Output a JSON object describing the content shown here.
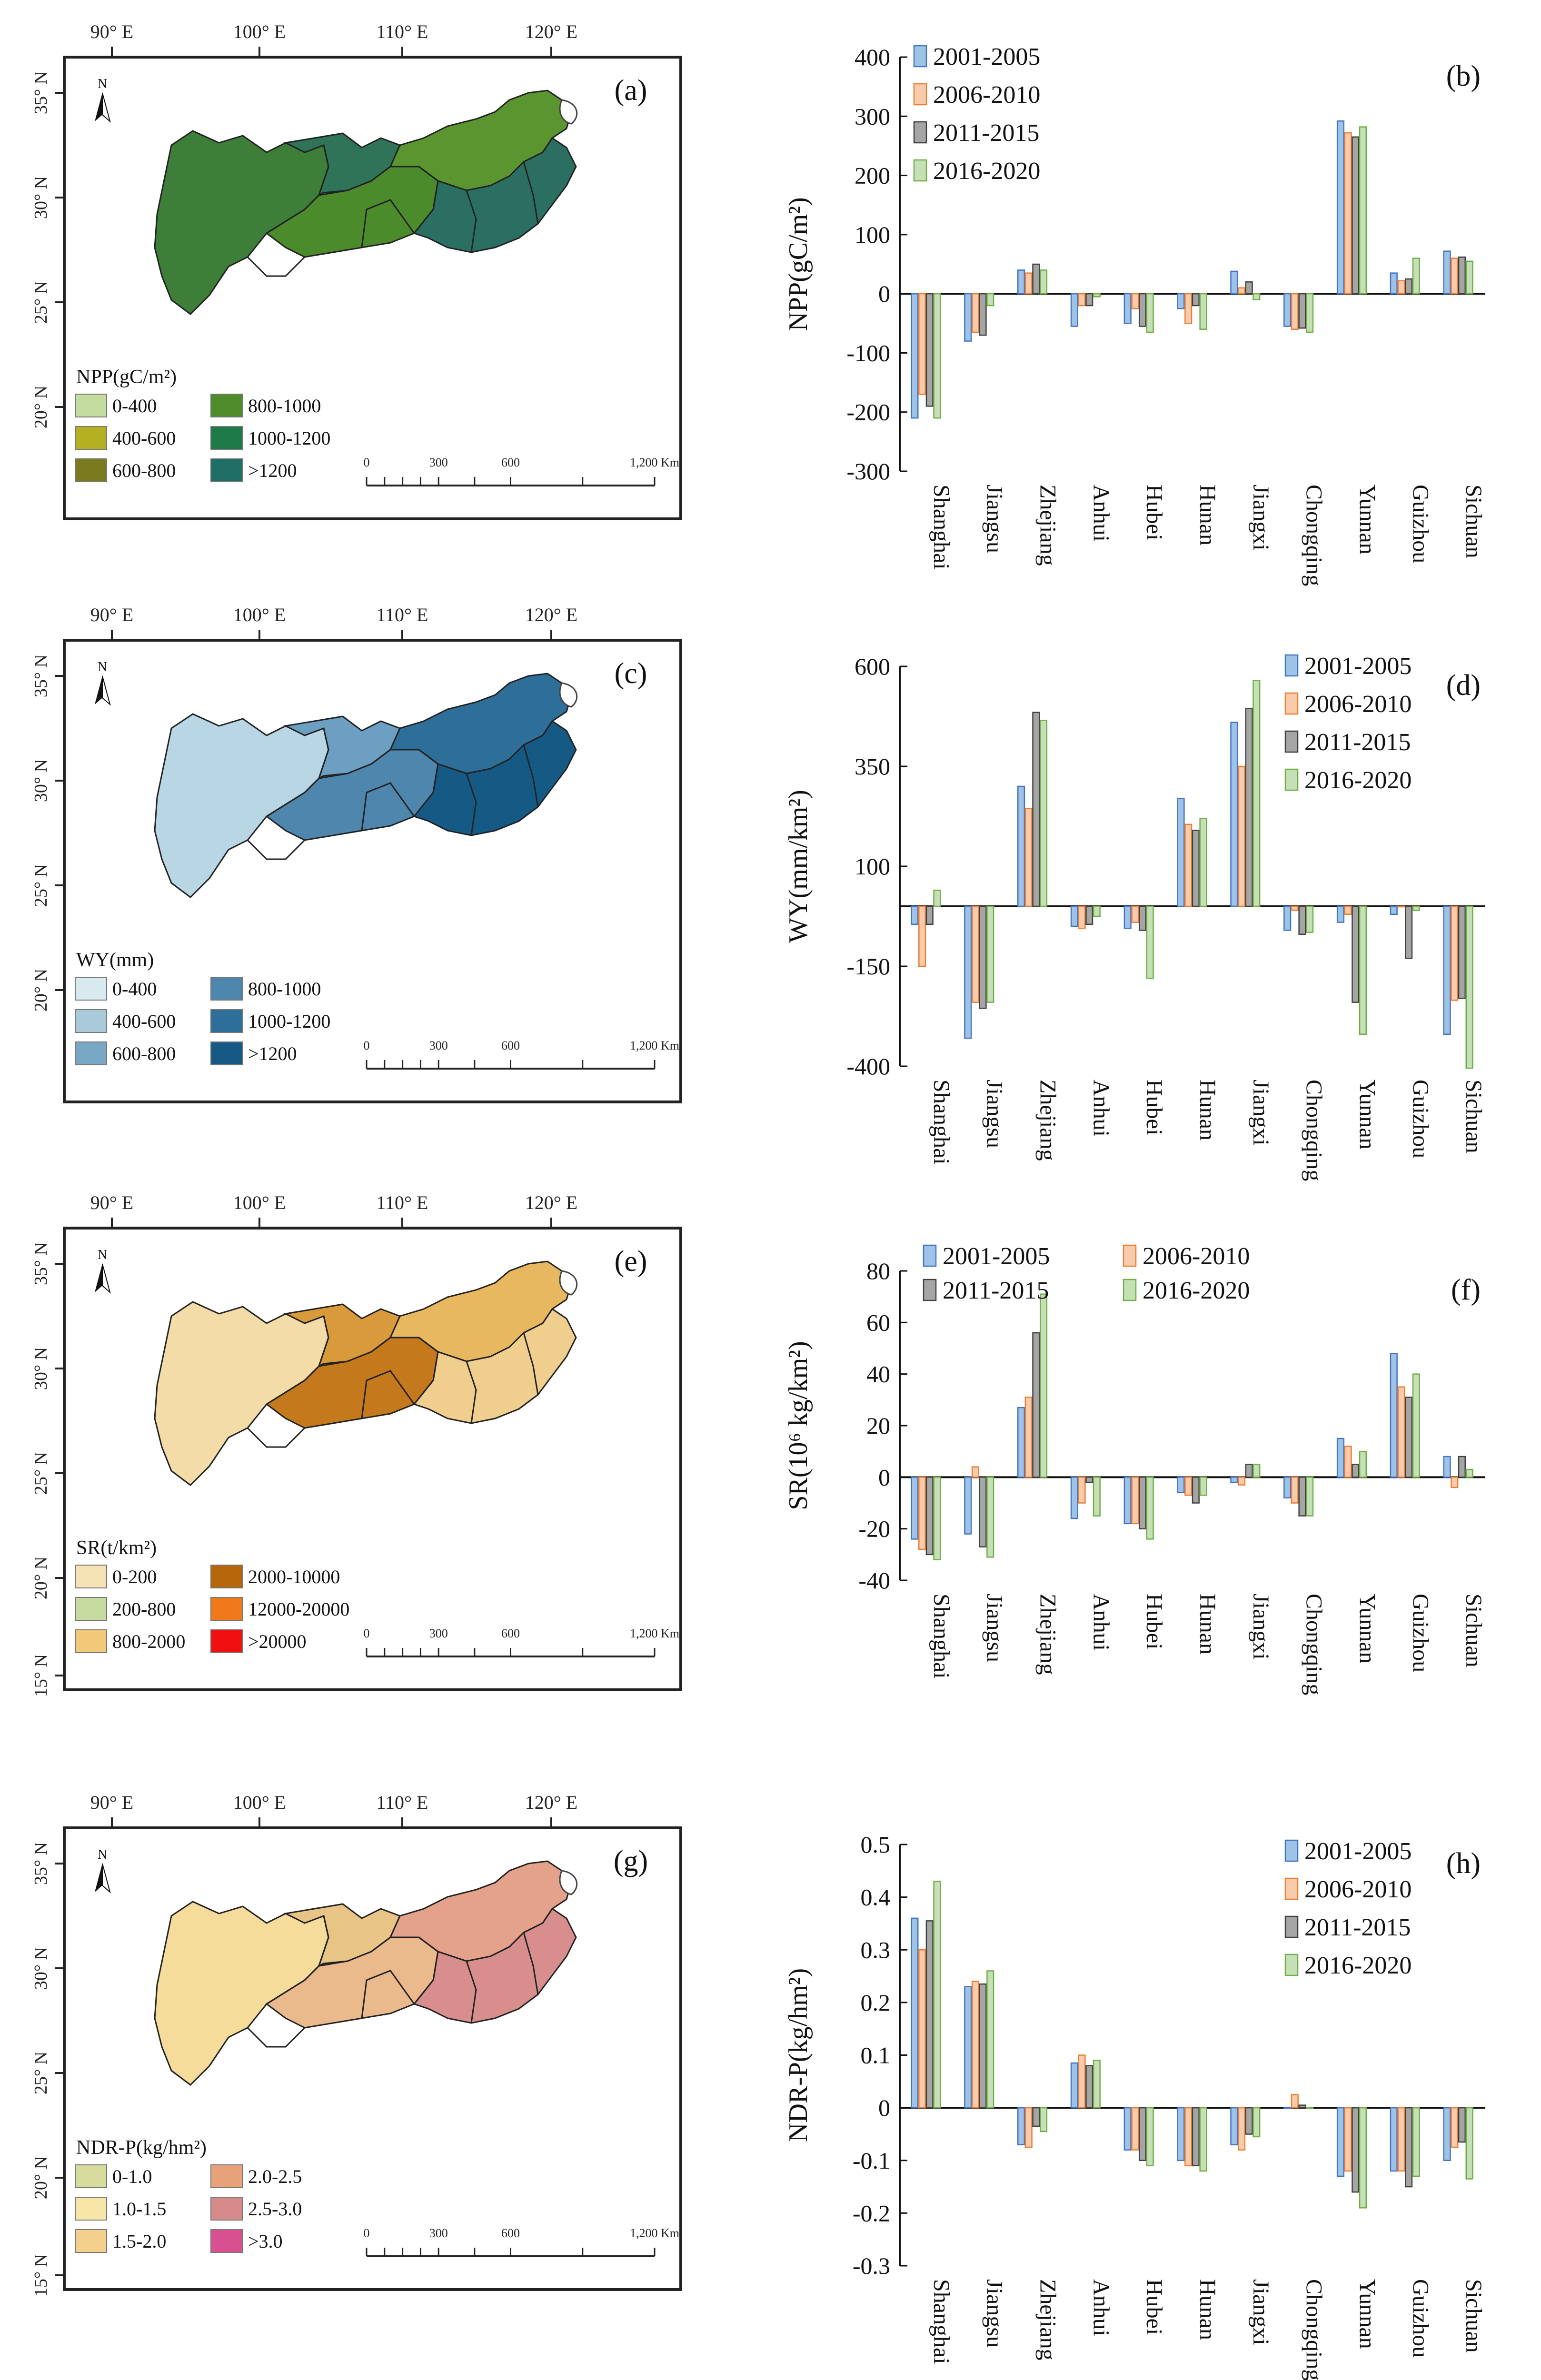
{
  "colors": {
    "s1": "#9dc3e6",
    "s1_stroke": "#4472c4",
    "s2": "#f8cbad",
    "s2_stroke": "#ed7d31",
    "s3": "#a5a5a5",
    "s3_stroke": "#404040",
    "s4": "#c5e0b4",
    "s4_stroke": "#70ad47"
  },
  "maps": [
    {
      "panel_label": "(a)",
      "lon_labels": [
        "90° E",
        "100° E",
        "110° E",
        "120° E"
      ],
      "lat_labels": [
        "35° N",
        "30° N",
        "25° N",
        "20° N"
      ],
      "legend_title": "NPP(gC/m²)",
      "legend": [
        {
          "label": "0-400",
          "color": "#c5dca0"
        },
        {
          "label": "800-1000",
          "color": "#4e8c2a"
        },
        {
          "label": "400-600",
          "color": "#b4b022"
        },
        {
          "label": "1000-1200",
          "color": "#1f7a4a"
        },
        {
          "label": "600-800",
          "color": "#7a7a1e"
        },
        {
          "label": ">1200",
          "color": "#1f6e66"
        }
      ],
      "region_colors": [
        "#3d7e38",
        "#2f7358",
        "#4b8b2c",
        "#5a9530",
        "#2a6f62"
      ],
      "scale_labels": [
        "0",
        "300",
        "600",
        "1,200 Km"
      ]
    },
    {
      "panel_label": "(c)",
      "lon_labels": [
        "90° E",
        "100° E",
        "110° E",
        "120° E"
      ],
      "lat_labels": [
        "35° N",
        "30° N",
        "25° N",
        "20° N"
      ],
      "legend_title": "WY(mm)",
      "legend": [
        {
          "label": "0-400",
          "color": "#d8eaf0"
        },
        {
          "label": "800-1000",
          "color": "#4f86ad"
        },
        {
          "label": "400-600",
          "color": "#a9cadb"
        },
        {
          "label": "1000-1200",
          "color": "#2d6f98"
        },
        {
          "label": "600-800",
          "color": "#79a8c6"
        },
        {
          "label": ">1200",
          "color": "#155a85"
        }
      ],
      "region_colors": [
        "#b9d6e4",
        "#6d9fc2",
        "#4f86ad",
        "#2d6f98",
        "#155a85"
      ],
      "scale_labels": [
        "0",
        "300",
        "600",
        "1,200 Km"
      ]
    },
    {
      "panel_label": "(e)",
      "lon_labels": [
        "90° E",
        "100° E",
        "110° E",
        "120° E"
      ],
      "lat_labels": [
        "35° N",
        "30° N",
        "25° N",
        "20° N",
        "15° N"
      ],
      "legend_title": "SR(t/km²)",
      "legend": [
        {
          "label": "0-200",
          "color": "#f6e3b5"
        },
        {
          "label": "2000-10000",
          "color": "#b5650a"
        },
        {
          "label": "200-800",
          "color": "#c7dba1"
        },
        {
          "label": "12000-20000",
          "color": "#f07a1a"
        },
        {
          "label": "800-2000",
          "color": "#f2c879"
        },
        {
          "label": ">20000",
          "color": "#f01010"
        }
      ],
      "region_colors": [
        "#f3dca8",
        "#d99a3c",
        "#c47a1c",
        "#e8b860",
        "#f0cf8e"
      ],
      "scale_labels": [
        "0",
        "300",
        "600",
        "1,200 Km"
      ]
    },
    {
      "panel_label": "(g)",
      "lon_labels": [
        "90° E",
        "100° E",
        "110° E",
        "120° E"
      ],
      "lat_labels": [
        "35° N",
        "30° N",
        "25° N",
        "20° N",
        "15° N"
      ],
      "legend_title": "NDR-P(kg/hm²)",
      "legend": [
        {
          "label": "0-1.0",
          "color": "#d6dc9c"
        },
        {
          "label": "2.0-2.5",
          "color": "#e8a27a"
        },
        {
          "label": "1.0-1.5",
          "color": "#f8e6a8"
        },
        {
          "label": "2.5-3.0",
          "color": "#d68a8a"
        },
        {
          "label": "1.5-2.0",
          "color": "#f3d08c"
        },
        {
          "label": ">3.0",
          "color": "#d8508f"
        }
      ],
      "region_colors": [
        "#f5dc9a",
        "#e9c487",
        "#eab98c",
        "#e3a289",
        "#d98e8e"
      ],
      "scale_labels": [
        "0",
        "300",
        "600",
        "1,200 Km"
      ]
    }
  ],
  "chart_data": [
    {
      "type": "bar",
      "panel_label": "(b)",
      "ylabel": "NPP(gC/m²)",
      "ylim": [
        -300,
        400
      ],
      "ticks": [
        -300,
        -200,
        -100,
        0,
        100,
        200,
        300,
        400
      ],
      "categories": [
        "Shanghai",
        "Jiangsu",
        "Zhejiang",
        "Anhui",
        "Hubei",
        "Hunan",
        "Jiangxi",
        "Chongqing",
        "Yunnan",
        "Guizhou",
        "Sichuan"
      ],
      "legend_position": "top-left",
      "series": [
        {
          "name": "2001-2005",
          "values": [
            -210,
            -80,
            40,
            -55,
            -50,
            -25,
            38,
            -55,
            292,
            35,
            72
          ]
        },
        {
          "name": "2006-2010",
          "values": [
            -170,
            -65,
            35,
            -20,
            -25,
            -50,
            10,
            -60,
            272,
            22,
            60
          ]
        },
        {
          "name": "2011-2015",
          "values": [
            -190,
            -70,
            50,
            -20,
            -55,
            -20,
            20,
            -58,
            265,
            25,
            62
          ]
        },
        {
          "name": "2016-2020",
          "values": [
            -210,
            -20,
            40,
            -5,
            -65,
            -60,
            -10,
            -65,
            282,
            60,
            55
          ]
        }
      ]
    },
    {
      "type": "bar",
      "panel_label": "(d)",
      "ylabel": "WY(mm/km²)",
      "ylim": [
        -400,
        600
      ],
      "ticks": [
        -400,
        -150,
        100,
        350,
        600
      ],
      "categories": [
        "Shanghai",
        "Jiangsu",
        "Zhejiang",
        "Anhui",
        "Hubei",
        "Hunan",
        "Jiangxi",
        "Chongqing",
        "Yunnan",
        "Guizhou",
        "Sichuan"
      ],
      "legend_position": "top-right",
      "series": [
        {
          "name": "2001-2005",
          "values": [
            -45,
            -330,
            300,
            -50,
            -55,
            270,
            460,
            -60,
            -40,
            -20,
            -320
          ]
        },
        {
          "name": "2006-2010",
          "values": [
            -150,
            -240,
            245,
            -55,
            -40,
            205,
            350,
            -10,
            -20,
            0,
            -235
          ]
        },
        {
          "name": "2011-2015",
          "values": [
            -45,
            -255,
            485,
            -45,
            -60,
            190,
            495,
            -70,
            -240,
            -130,
            -230
          ]
        },
        {
          "name": "2016-2020",
          "values": [
            40,
            -240,
            465,
            -25,
            -180,
            220,
            565,
            -65,
            -320,
            -10,
            -405
          ]
        }
      ]
    },
    {
      "type": "bar",
      "panel_label": "(f)",
      "ylabel": "SR(10⁶ kg/km²)",
      "ylim": [
        -40,
        80
      ],
      "ticks": [
        -40,
        -20,
        0,
        20,
        40,
        60,
        80
      ],
      "categories": [
        "Shanghai",
        "Jiangsu",
        "Zhejiang",
        "Anhui",
        "Hubei",
        "Hunan",
        "Jiangxi",
        "Chongqing",
        "Yunnan",
        "Guizhou",
        "Sichuan"
      ],
      "legend_position": "top",
      "series": [
        {
          "name": "2001-2005",
          "values": [
            -24,
            -22,
            27,
            -16,
            -18,
            -6,
            -2,
            -8,
            15,
            48,
            8
          ]
        },
        {
          "name": "2006-2010",
          "values": [
            -28,
            4,
            31,
            -10,
            -18,
            -7,
            -3,
            -10,
            12,
            35,
            -4
          ]
        },
        {
          "name": "2011-2015",
          "values": [
            -30,
            -27,
            56,
            -2,
            -20,
            -10,
            5,
            -15,
            5,
            31,
            8
          ]
        },
        {
          "name": "2016-2020",
          "values": [
            -32,
            -31,
            71,
            -15,
            -24,
            -7,
            5,
            -15,
            10,
            40,
            3
          ]
        }
      ]
    },
    {
      "type": "bar",
      "panel_label": "(h)",
      "ylabel": "NDR-P(kg/hm²)",
      "ylim": [
        -0.3,
        0.5
      ],
      "ticks": [
        -0.3,
        -0.2,
        -0.1,
        0,
        0.1,
        0.2,
        0.3,
        0.4,
        0.5
      ],
      "categories": [
        "Shanghai",
        "Jiangsu",
        "Zhejiang",
        "Anhui",
        "Hubei",
        "Hunan",
        "Jiangxi",
        "Chongqing",
        "Yunnan",
        "Guizhou",
        "Sichuan"
      ],
      "legend_position": "top-right",
      "series": [
        {
          "name": "2001-2005",
          "values": [
            0.36,
            0.23,
            -0.07,
            0.085,
            -0.08,
            -0.1,
            -0.07,
            0.0,
            -0.13,
            -0.12,
            -0.1
          ]
        },
        {
          "name": "2006-2010",
          "values": [
            0.3,
            0.24,
            -0.075,
            0.1,
            -0.08,
            -0.11,
            -0.08,
            0.025,
            -0.12,
            -0.12,
            -0.075
          ]
        },
        {
          "name": "2011-2015",
          "values": [
            0.355,
            0.235,
            -0.035,
            0.08,
            -0.1,
            -0.11,
            -0.05,
            0.005,
            -0.16,
            -0.15,
            -0.065
          ]
        },
        {
          "name": "2016-2020",
          "values": [
            0.43,
            0.26,
            -0.045,
            0.09,
            -0.11,
            -0.12,
            -0.055,
            0.0,
            -0.19,
            -0.13,
            -0.135
          ]
        }
      ]
    }
  ]
}
